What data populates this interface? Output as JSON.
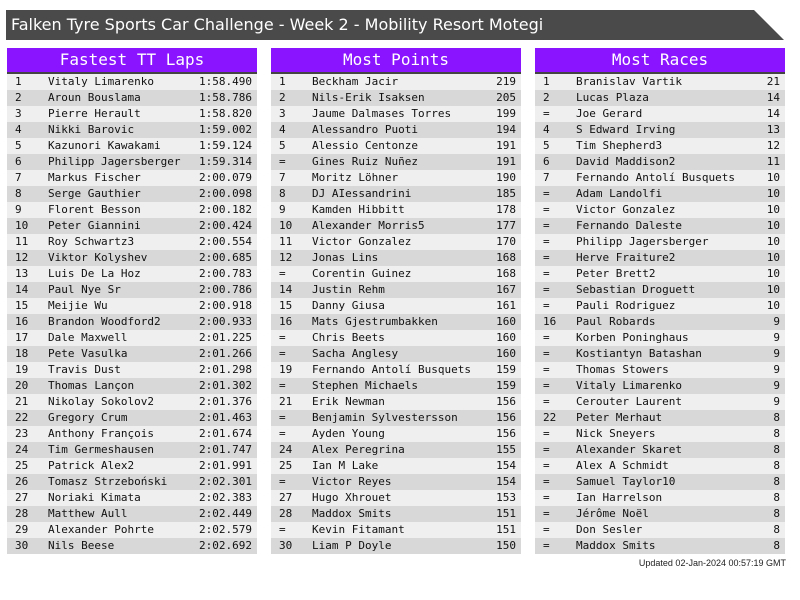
{
  "title": "Falken Tyre Sports Car Challenge - Week 2 - Mobility Resort Motegi",
  "updated": "Updated 02-Jan-2024 00:57:19 GMT",
  "colors": {
    "header": "#8a14ff",
    "title_bar": "#4a4a4a"
  },
  "panels": [
    {
      "heading": "Fastest TT Laps",
      "rows": [
        [
          "1",
          "Vitaly Limarenko",
          "1:58.490"
        ],
        [
          "2",
          "Aroun Bouslama",
          "1:58.786"
        ],
        [
          "3",
          "Pierre Herault",
          "1:58.820"
        ],
        [
          "4",
          "Nikki Barovic",
          "1:59.002"
        ],
        [
          "5",
          "Kazunori Kawakami",
          "1:59.124"
        ],
        [
          "6",
          "Philipp Jagersberger",
          "1:59.314"
        ],
        [
          "7",
          "Markus Fischer",
          "2:00.079"
        ],
        [
          "8",
          "Serge Gauthier",
          "2:00.098"
        ],
        [
          "9",
          "Florent Besson",
          "2:00.182"
        ],
        [
          "10",
          "Peter Giannini",
          "2:00.424"
        ],
        [
          "11",
          "Roy Schwartz3",
          "2:00.554"
        ],
        [
          "12",
          "Viktor Kolyshev",
          "2:00.685"
        ],
        [
          "13",
          "Luis De La Hoz",
          "2:00.783"
        ],
        [
          "14",
          "Paul Nye Sr",
          "2:00.786"
        ],
        [
          "15",
          "Meijie Wu",
          "2:00.918"
        ],
        [
          "16",
          "Brandon Woodford2",
          "2:00.933"
        ],
        [
          "17",
          "Dale Maxwell",
          "2:01.225"
        ],
        [
          "18",
          "Pete Vasulka",
          "2:01.266"
        ],
        [
          "19",
          "Travis Dust",
          "2:01.298"
        ],
        [
          "20",
          "Thomas Lançon",
          "2:01.302"
        ],
        [
          "21",
          "Nikolay Sokolov2",
          "2:01.376"
        ],
        [
          "22",
          "Gregory Crum",
          "2:01.463"
        ],
        [
          "23",
          "Anthony François",
          "2:01.674"
        ],
        [
          "24",
          "Tim Germeshausen",
          "2:01.747"
        ],
        [
          "25",
          "Patrick Alex2",
          "2:01.991"
        ],
        [
          "26",
          "Tomasz Strzeboński",
          "2:02.301"
        ],
        [
          "27",
          "Noriaki Kimata",
          "2:02.383"
        ],
        [
          "28",
          "Matthew Aull",
          "2:02.449"
        ],
        [
          "29",
          "Alexander Pohrte",
          "2:02.579"
        ],
        [
          "30",
          "Nils Beese",
          "2:02.692"
        ]
      ]
    },
    {
      "heading": "Most Points",
      "rows": [
        [
          "1",
          "Beckham Jacir",
          "219"
        ],
        [
          "2",
          "Nils-Erik Isaksen",
          "205"
        ],
        [
          "3",
          "Jaume Dalmases Torres",
          "199"
        ],
        [
          "4",
          "Alessandro Puoti",
          "194"
        ],
        [
          "5",
          "Alessio Centonze",
          "191"
        ],
        [
          "=",
          "Gines Ruiz Nuñez",
          "191"
        ],
        [
          "7",
          "Moritz Löhner",
          "190"
        ],
        [
          "8",
          "DJ AIessandrini",
          "185"
        ],
        [
          "9",
          "Kamden Hibbitt",
          "178"
        ],
        [
          "10",
          "Alexander Morris5",
          "177"
        ],
        [
          "11",
          "Victor Gonzalez",
          "170"
        ],
        [
          "12",
          "Jonas Lins",
          "168"
        ],
        [
          "=",
          "Corentin Guinez",
          "168"
        ],
        [
          "14",
          "Justin Rehm",
          "167"
        ],
        [
          "15",
          "Danny Giusa",
          "161"
        ],
        [
          "16",
          "Mats Gjestrumbakken",
          "160"
        ],
        [
          "=",
          "Chris Beets",
          "160"
        ],
        [
          "=",
          "Sacha Anglesy",
          "160"
        ],
        [
          "19",
          "Fernando Antolí Busquets",
          "159"
        ],
        [
          "=",
          "Stephen Michaels",
          "159"
        ],
        [
          "21",
          "Erik Newman",
          "156"
        ],
        [
          "=",
          "Benjamin Sylvestersson",
          "156"
        ],
        [
          "=",
          "Ayden Young",
          "156"
        ],
        [
          "24",
          "Alex Peregrina",
          "155"
        ],
        [
          "25",
          "Ian M Lake",
          "154"
        ],
        [
          "=",
          "Victor Reyes",
          "154"
        ],
        [
          "27",
          "Hugo Xhrouet",
          "153"
        ],
        [
          "28",
          "Maddox Smits",
          "151"
        ],
        [
          "=",
          "Kevin Fitamant",
          "151"
        ],
        [
          "30",
          "Liam P Doyle",
          "150"
        ]
      ]
    },
    {
      "heading": "Most Races",
      "rows": [
        [
          "1",
          "Branislav Vartik",
          "21"
        ],
        [
          "2",
          "Lucas Plaza",
          "14"
        ],
        [
          "=",
          "Joe Gerard",
          "14"
        ],
        [
          "4",
          "S Edward Irving",
          "13"
        ],
        [
          "5",
          "Tim Shepherd3",
          "12"
        ],
        [
          "6",
          "David Maddison2",
          "11"
        ],
        [
          "7",
          "Fernando Antolí Busquets",
          "10"
        ],
        [
          "=",
          "Adam Landolfi",
          "10"
        ],
        [
          "=",
          "Victor Gonzalez",
          "10"
        ],
        [
          "=",
          "Fernando Daleste",
          "10"
        ],
        [
          "=",
          "Philipp Jagersberger",
          "10"
        ],
        [
          "=",
          "Herve Fraiture2",
          "10"
        ],
        [
          "=",
          "Peter Brett2",
          "10"
        ],
        [
          "=",
          "Sebastian Droguett",
          "10"
        ],
        [
          "=",
          "Pauli Rodriguez",
          "10"
        ],
        [
          "16",
          "Paul Robards",
          "9"
        ],
        [
          "=",
          "Korben Poninghaus",
          "9"
        ],
        [
          "=",
          "Kostiantyn Batashan",
          "9"
        ],
        [
          "=",
          "Thomas Stowers",
          "9"
        ],
        [
          "=",
          "Vitaly Limarenko",
          "9"
        ],
        [
          "=",
          "Cerouter Laurent",
          "9"
        ],
        [
          "22",
          "Peter Merhaut",
          "8"
        ],
        [
          "=",
          "Nick Sneyers",
          "8"
        ],
        [
          "=",
          "Alexander Skaret",
          "8"
        ],
        [
          "=",
          "Alex A Schmidt",
          "8"
        ],
        [
          "=",
          "Samuel Taylor10",
          "8"
        ],
        [
          "=",
          "Ian Harrelson",
          "8"
        ],
        [
          "=",
          "Jérôme Noël",
          "8"
        ],
        [
          "=",
          "Don Sesler",
          "8"
        ],
        [
          "=",
          "Maddox Smits",
          "8"
        ]
      ]
    }
  ]
}
